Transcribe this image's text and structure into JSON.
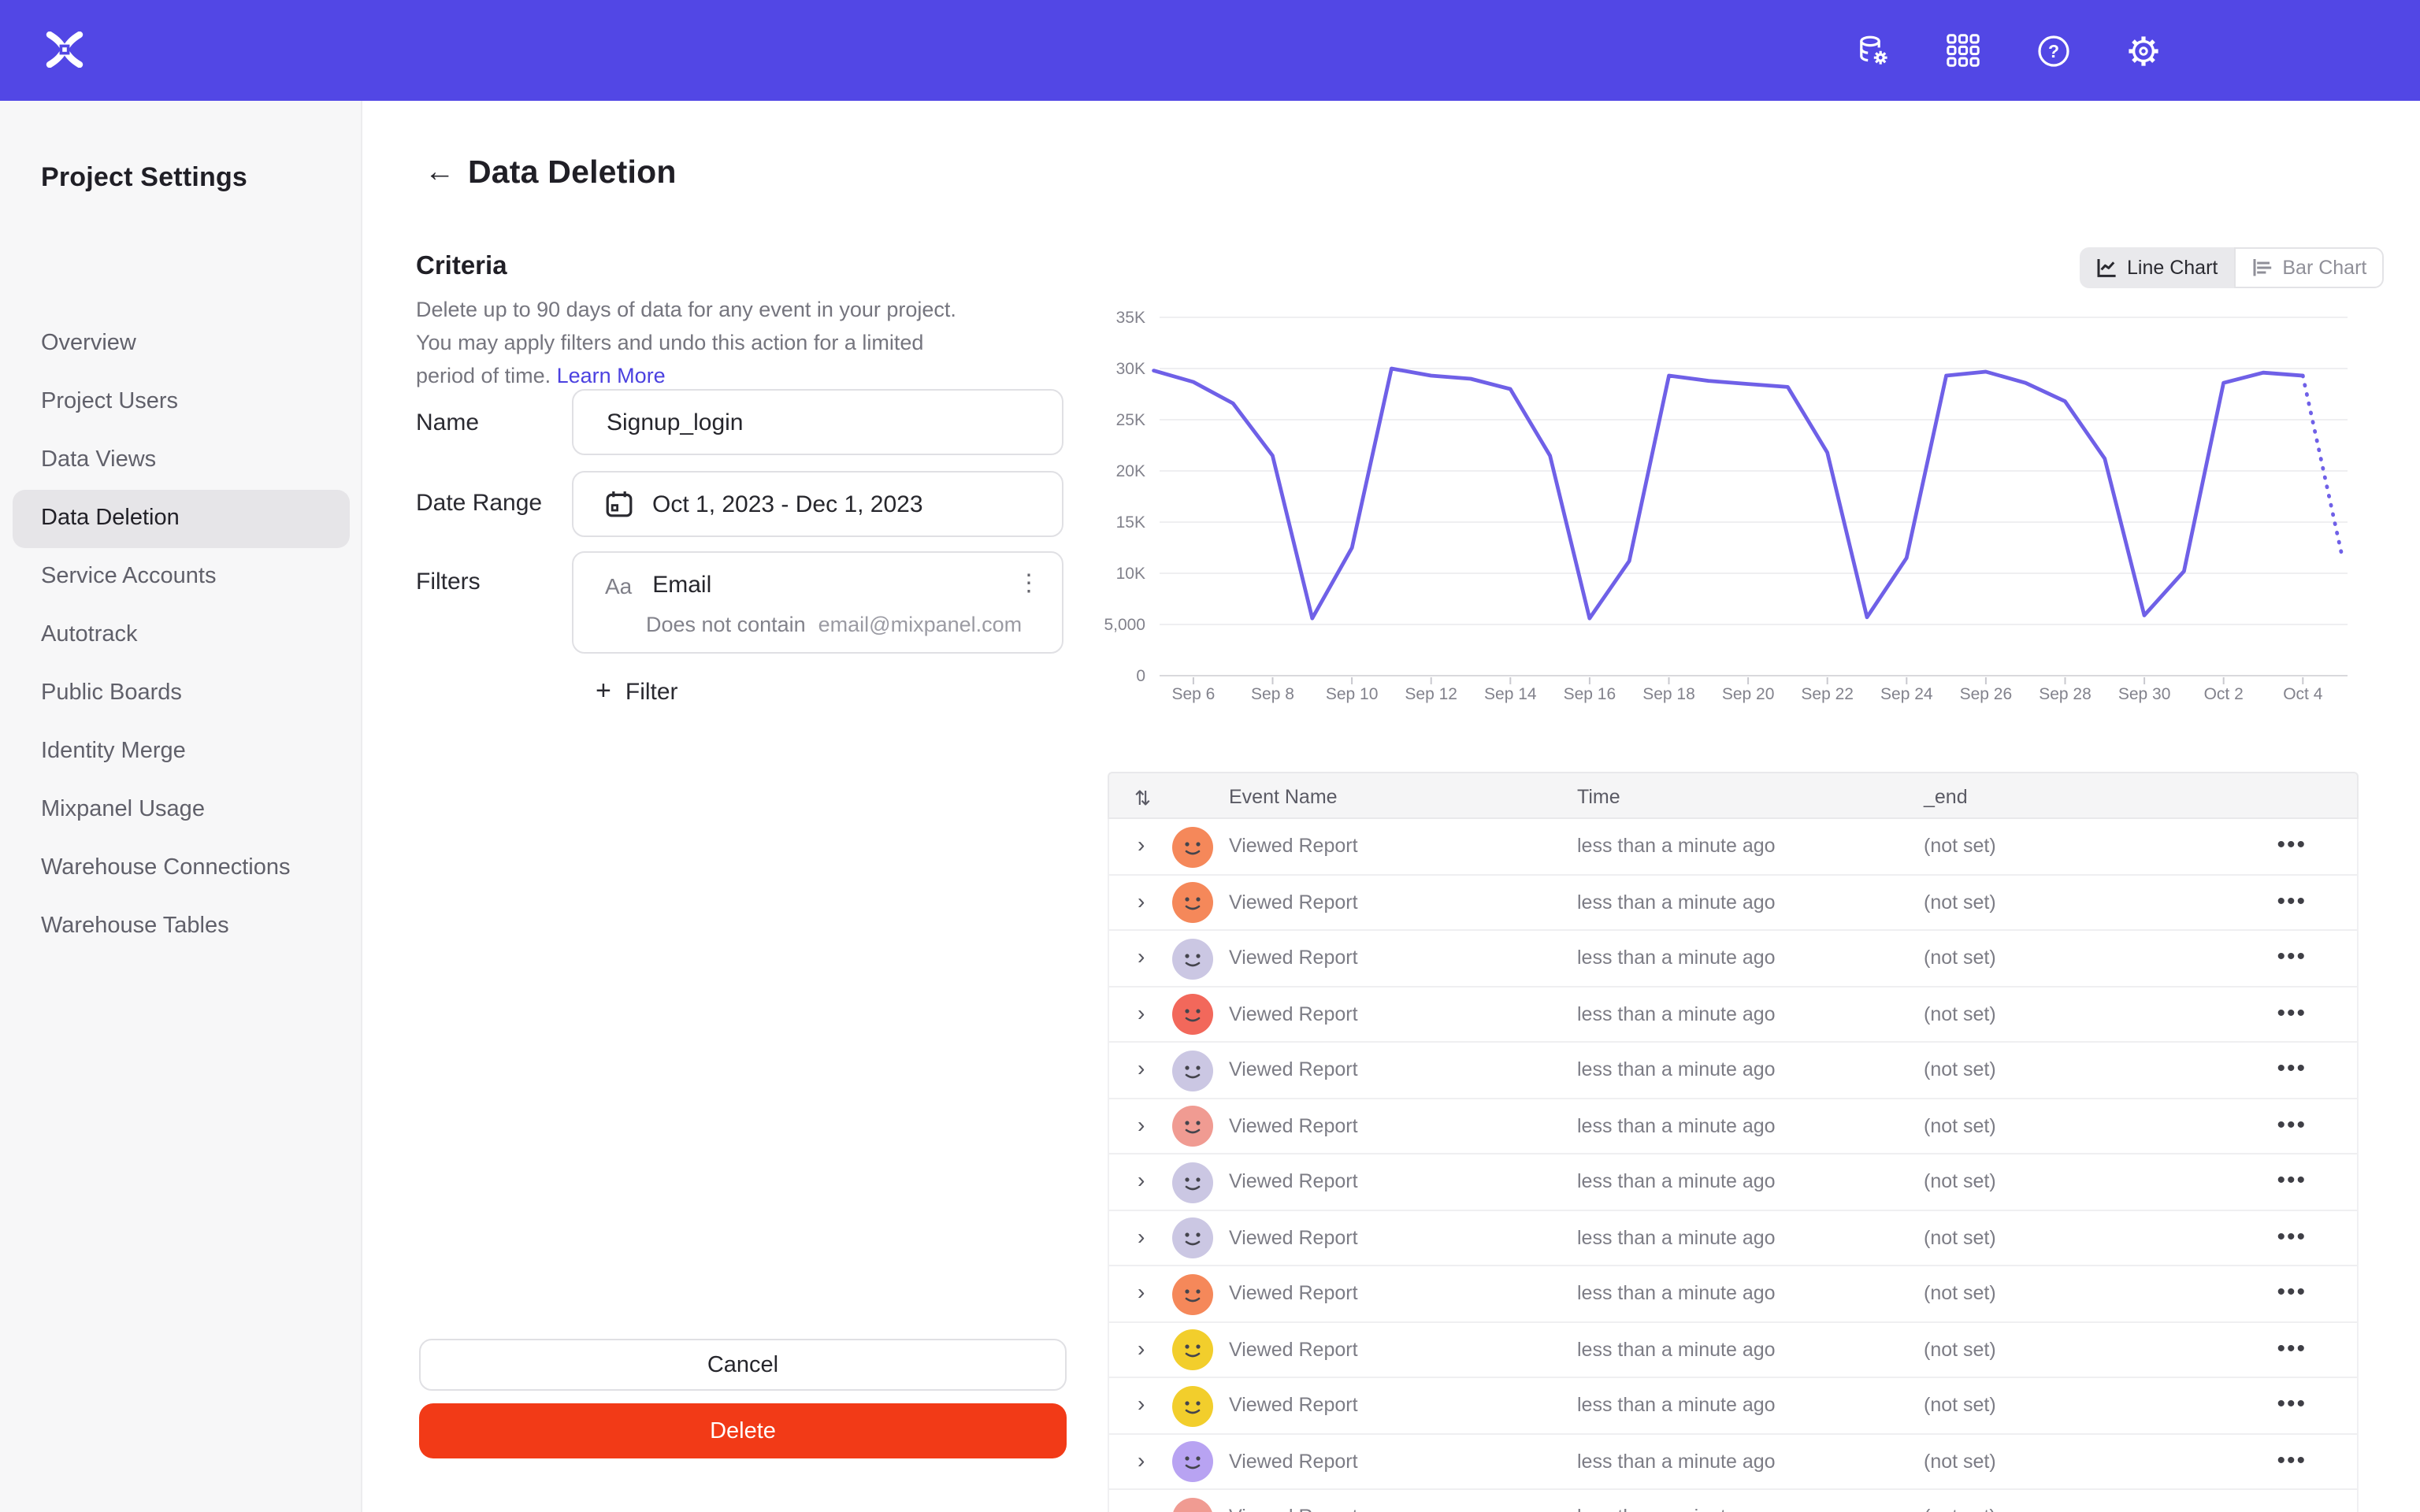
{
  "colors": {
    "topbar": "#5247E5",
    "accent_link": "#4B41E0",
    "delete_button": "#F23A17",
    "chart_line": "#6F60E7",
    "sidebar_selected_bg": "#E6E5E8"
  },
  "topbar": {
    "icons": [
      "data-settings-icon",
      "apps-grid-icon",
      "help-icon",
      "settings-gear-icon"
    ],
    "logo": "mixpanel-logo"
  },
  "sidebar": {
    "title": "Project Settings",
    "items": [
      {
        "label": "Overview",
        "active": false
      },
      {
        "label": "Project Users",
        "active": false
      },
      {
        "label": "Data Views",
        "active": false
      },
      {
        "label": "Data Deletion",
        "active": true
      },
      {
        "label": "Service Accounts",
        "active": false
      },
      {
        "label": "Autotrack",
        "active": false
      },
      {
        "label": "Public Boards",
        "active": false
      },
      {
        "label": "Identity Merge",
        "active": false
      },
      {
        "label": "Mixpanel Usage",
        "active": false
      },
      {
        "label": "Warehouse Connections",
        "active": false
      },
      {
        "label": "Warehouse Tables",
        "active": false
      }
    ]
  },
  "page": {
    "title": "Data Deletion",
    "back_icon": "←"
  },
  "criteria": {
    "heading": "Criteria",
    "description": "Delete up to 90 days of data for any event in your project. You may apply filters and undo this action for a limited period of time.",
    "learn_more": "Learn More",
    "fields": {
      "name_label": "Name",
      "name_value": "Signup_login",
      "date_label": "Date Range",
      "date_value": "Oct 1, 2023 - Dec 1, 2023",
      "filters_label": "Filters",
      "filter_type_badge": "Aa",
      "filter_property": "Email",
      "filter_operator": "Does not contain",
      "filter_value": "email@mixpanel.com",
      "filter_kebab": "⋮",
      "add_filter_plus": "+",
      "add_filter_label": "Filter"
    }
  },
  "actions": {
    "cancel": "Cancel",
    "delete": "Delete"
  },
  "chart_toggle": {
    "line_label": "Line Chart",
    "bar_label": "Bar Chart",
    "selected": "line"
  },
  "chart_data": {
    "type": "line",
    "title": "",
    "xlabel": "",
    "ylabel": "",
    "ylim": [
      0,
      35000
    ],
    "grid": true,
    "legend": "none",
    "line_color": "#6F60E7",
    "x": [
      "Sep 5",
      "Sep 6",
      "Sep 7",
      "Sep 8",
      "Sep 9",
      "Sep 10",
      "Sep 11",
      "Sep 12",
      "Sep 13",
      "Sep 14",
      "Sep 15",
      "Sep 16",
      "Sep 17",
      "Sep 18",
      "Sep 19",
      "Sep 20",
      "Sep 21",
      "Sep 22",
      "Sep 23",
      "Sep 24",
      "Sep 25",
      "Sep 26",
      "Sep 27",
      "Sep 28",
      "Sep 29",
      "Sep 30",
      "Oct 1",
      "Oct 2",
      "Oct 3",
      "Oct 4",
      "Oct 5"
    ],
    "values": [
      29800,
      28700,
      26600,
      21500,
      5600,
      12500,
      30000,
      29300,
      29000,
      28000,
      21500,
      5600,
      11200,
      29300,
      28800,
      28500,
      28200,
      21800,
      5700,
      11500,
      29300,
      29700,
      28600,
      26800,
      21200,
      5900,
      10200,
      28600,
      29600,
      29300,
      11500
    ],
    "last_segment_dotted": true,
    "y_tick_values": [
      0,
      5000,
      10000,
      15000,
      20000,
      25000,
      30000,
      35000
    ],
    "y_tick_labels": [
      "0",
      "5,000",
      "10K",
      "15K",
      "20K",
      "25K",
      "30K",
      "35K"
    ],
    "x_tick_indices": [
      1,
      3,
      5,
      7,
      9,
      11,
      13,
      15,
      17,
      19,
      21,
      23,
      25,
      27,
      29
    ]
  },
  "table": {
    "sort_icon": "⇅",
    "expander_icon": "›",
    "row_kebab": "•••",
    "columns": [
      "Event Name",
      "Time",
      "_end"
    ],
    "rows": [
      {
        "event": "Viewed Report",
        "time": "less than a minute ago",
        "end": "(not set)",
        "avatar_color": "#F5885A"
      },
      {
        "event": "Viewed Report",
        "time": "less than a minute ago",
        "end": "(not set)",
        "avatar_color": "#F5885A"
      },
      {
        "event": "Viewed Report",
        "time": "less than a minute ago",
        "end": "(not set)",
        "avatar_color": "#CBC7E3"
      },
      {
        "event": "Viewed Report",
        "time": "less than a minute ago",
        "end": "(not set)",
        "avatar_color": "#F2685B"
      },
      {
        "event": "Viewed Report",
        "time": "less than a minute ago",
        "end": "(not set)",
        "avatar_color": "#CBC7E3"
      },
      {
        "event": "Viewed Report",
        "time": "less than a minute ago",
        "end": "(not set)",
        "avatar_color": "#F09B92"
      },
      {
        "event": "Viewed Report",
        "time": "less than a minute ago",
        "end": "(not set)",
        "avatar_color": "#CBC7E3"
      },
      {
        "event": "Viewed Report",
        "time": "less than a minute ago",
        "end": "(not set)",
        "avatar_color": "#CBC7E3"
      },
      {
        "event": "Viewed Report",
        "time": "less than a minute ago",
        "end": "(not set)",
        "avatar_color": "#F5885A"
      },
      {
        "event": "Viewed Report",
        "time": "less than a minute ago",
        "end": "(not set)",
        "avatar_color": "#F2CE2C"
      },
      {
        "event": "Viewed Report",
        "time": "less than a minute ago",
        "end": "(not set)",
        "avatar_color": "#F2CE2C"
      },
      {
        "event": "Viewed Report",
        "time": "less than a minute ago",
        "end": "(not set)",
        "avatar_color": "#B8A3F2"
      },
      {
        "event": "Viewed Report",
        "time": "less than a minute ago",
        "end": "(not set)",
        "avatar_color": "#F09B92"
      }
    ]
  }
}
